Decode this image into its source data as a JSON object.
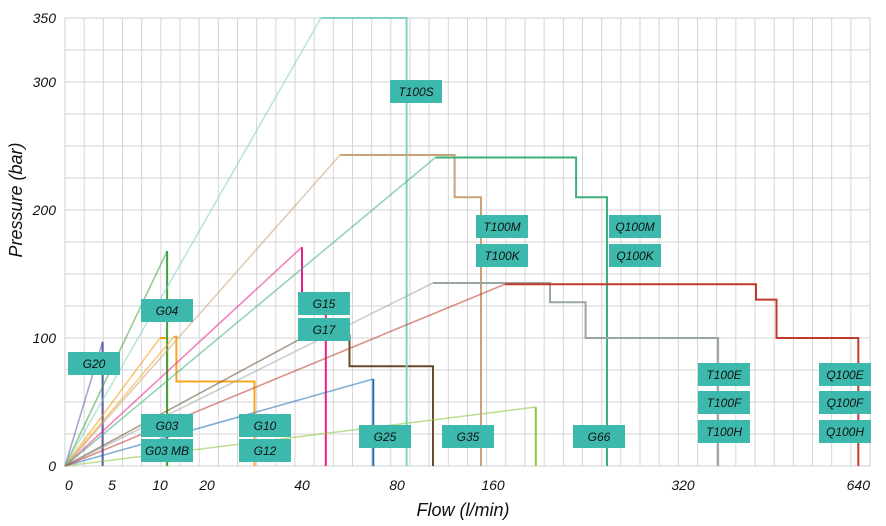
{
  "chart_data": {
    "type": "line",
    "title": "",
    "xlabel": "Flow (l/min)",
    "ylabel": "Pressure (bar)",
    "x_scale": "log-like (compressed at high flow)",
    "xlim": [
      0,
      640
    ],
    "ylim": [
      0,
      350
    ],
    "x_ticks": [
      "0",
      "5",
      "10",
      "20",
      "40",
      "80",
      "160",
      "320",
      "640"
    ],
    "x_tick_values": [
      0,
      5,
      10,
      20,
      40,
      80,
      160,
      320,
      640
    ],
    "y_ticks": [
      "0",
      "100",
      "200",
      "300",
      "350"
    ],
    "y_tick_values": [
      0,
      100,
      200,
      300,
      350
    ],
    "grid": true,
    "label_box_color": "#3db8ac",
    "series": [
      {
        "color": "#5b5ea6",
        "points": [
          [
            0,
            0
          ],
          [
            4,
            97
          ],
          [
            4,
            97
          ],
          [
            4,
            0
          ]
        ]
      },
      {
        "color": "#f39c12",
        "points": [
          [
            0,
            0
          ],
          [
            10,
            100
          ],
          [
            11.5,
            100
          ],
          [
            11.5,
            0
          ]
        ]
      },
      {
        "color": "#3aa33a",
        "points": [
          [
            0,
            0
          ],
          [
            11.5,
            168
          ],
          [
            11.5,
            168
          ],
          [
            11.5,
            0
          ]
        ]
      },
      {
        "color": "#f5a623",
        "points": [
          [
            0,
            0
          ],
          [
            13,
            101
          ],
          [
            13.5,
            101
          ],
          [
            13.5,
            66
          ],
          [
            30,
            66
          ],
          [
            30,
            0
          ]
        ]
      },
      {
        "color": "#e91e8c",
        "points": [
          [
            0,
            0
          ],
          [
            40,
            171
          ],
          [
            40,
            135
          ],
          [
            50,
            135
          ],
          [
            50,
            0
          ]
        ]
      },
      {
        "color": "#1f6fb8",
        "points": [
          [
            0,
            0
          ],
          [
            70,
            68
          ],
          [
            70,
            68
          ],
          [
            70,
            0
          ]
        ]
      },
      {
        "color": "#6b4a2a",
        "points": [
          [
            0,
            0
          ],
          [
            42,
            102
          ],
          [
            60,
            102
          ],
          [
            60,
            78
          ],
          [
            110,
            78
          ],
          [
            110,
            0
          ]
        ]
      },
      {
        "color": "#7fd1c7",
        "points": [
          [
            0,
            0
          ],
          [
            48,
            350
          ],
          [
            88,
            350
          ],
          [
            88,
            0
          ]
        ]
      },
      {
        "color": "#8dc63f",
        "points": [
          [
            0,
            0
          ],
          [
            196,
            46
          ],
          [
            196,
            46
          ],
          [
            196,
            0
          ]
        ]
      },
      {
        "color": "#c9a27a",
        "points": [
          [
            0,
            0
          ],
          [
            56,
            243
          ],
          [
            128,
            243
          ],
          [
            128,
            210
          ],
          [
            150,
            210
          ],
          [
            150,
            0
          ]
        ]
      },
      {
        "color": "#3db07a",
        "points": [
          [
            0,
            0
          ],
          [
            112,
            241
          ],
          [
            230,
            241
          ],
          [
            230,
            210
          ],
          [
            256,
            210
          ],
          [
            256,
            0
          ]
        ]
      },
      {
        "color": "#9aa5a8",
        "points": [
          [
            0,
            0
          ],
          [
            110,
            143
          ],
          [
            208,
            143
          ],
          [
            208,
            128
          ],
          [
            238,
            128
          ],
          [
            238,
            100
          ],
          [
            380,
            100
          ],
          [
            380,
            0
          ]
        ]
      },
      {
        "color": "#c0392b",
        "points": [
          [
            0,
            0
          ],
          [
            170,
            142
          ],
          [
            445,
            142
          ],
          [
            445,
            130
          ],
          [
            480,
            130
          ],
          [
            480,
            100
          ],
          [
            620,
            100
          ],
          [
            620,
            0
          ]
        ]
      }
    ],
    "labels": [
      "G20",
      "G04",
      "G03",
      "G03 MB",
      "G10",
      "G12",
      "G15",
      "G17",
      "G25",
      "G35",
      "T100S",
      "T100M",
      "T100K",
      "Q100M",
      "Q100K",
      "G66",
      "T100E",
      "T100F",
      "T100H",
      "Q100E",
      "Q100F",
      "Q100H"
    ]
  }
}
